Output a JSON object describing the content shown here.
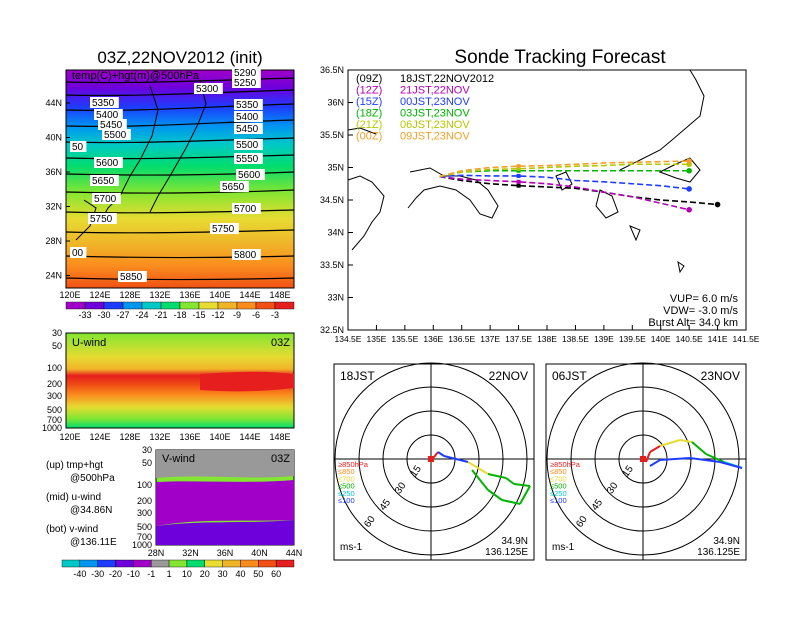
{
  "left": {
    "title": "03Z,22NOV2012  (init)",
    "top_panel": {
      "label": "temp(C)+hgt(m)@500hPa",
      "lat_ticks": [
        "44N",
        "40N",
        "36N",
        "32N",
        "28N",
        "24N"
      ],
      "lon_ticks": [
        "120E",
        "124E",
        "128E",
        "132E",
        "136E",
        "140E",
        "144E",
        "148E"
      ],
      "contour_labels": [
        "5300",
        "5290",
        "5250",
        "5350",
        "5350",
        "5400",
        "5400",
        "5450",
        "5450",
        "5500",
        "5500",
        "5550",
        "5600",
        "5600",
        "5650",
        "5650",
        "5700",
        "5700",
        "5750",
        "5750",
        "5800",
        "5850",
        "50",
        "00"
      ],
      "colorbar_ticks": [
        "-33",
        "-30",
        "-27",
        "-24",
        "-21",
        "-18",
        "-15",
        "-12",
        "-9",
        "-6",
        "-3"
      ],
      "colorbar_colors": [
        "#a000c8",
        "#6e00dc",
        "#1e3cff",
        "#0096f0",
        "#00c8c8",
        "#00dc6e",
        "#82e632",
        "#e6dc32",
        "#f0b428",
        "#fa8c1e",
        "#f05014",
        "#e61e1e"
      ]
    },
    "mid_panel": {
      "label": "U-wind",
      "time": "03Z",
      "p_ticks": [
        "30",
        "50",
        "100",
        "200",
        "300",
        "500",
        "700",
        "1000"
      ],
      "lon_ticks": [
        "120E",
        "124E",
        "128E",
        "132E",
        "136E",
        "140E",
        "144E",
        "148E"
      ]
    },
    "bot_panel": {
      "label": "V-wind",
      "time": "03Z",
      "p_ticks": [
        "30",
        "50",
        "100",
        "200",
        "300",
        "500",
        "700",
        "1000"
      ],
      "lat_ticks": [
        "28N",
        "32N",
        "36N",
        "40N",
        "44N"
      ]
    },
    "legend_text": {
      "up1": "(up)  tmp+hgt",
      "up2": "@500hPa",
      "mid1": "(mid)  u-wind",
      "mid2": "@34.86N",
      "bot1": "(bot)  v-wind",
      "bot2": "@136.11E"
    },
    "wind_colorbar_ticks": [
      "-40",
      "-30",
      "-20",
      "-10",
      "-1",
      "1",
      "10",
      "20",
      "30",
      "40",
      "50",
      "60"
    ],
    "wind_colorbar_colors": [
      "#00c8c8",
      "#0096f0",
      "#1e3cff",
      "#6e00dc",
      "#a000c8",
      "#999999",
      "#82e632",
      "#00dc6e",
      "#e6dc32",
      "#f0b428",
      "#fa8c1e",
      "#f05014",
      "#e61e1e"
    ]
  },
  "right": {
    "title": "Sonde Tracking Forecast",
    "lat_ticks": [
      "36.5N",
      "36N",
      "35.5N",
      "35N",
      "34.5N",
      "34N",
      "33.5N",
      "33N",
      "32.5N"
    ],
    "lon_ticks": [
      "134.5E",
      "135E",
      "135.5E",
      "136E",
      "136.5E",
      "137E",
      "137.5E",
      "138E",
      "138.5E",
      "139E",
      "139.5E",
      "140E",
      "140.5E",
      "141E",
      "141.5E"
    ],
    "legend": [
      {
        "run": "(09Z)",
        "time": "18JST,22NOV2012",
        "color": "#000000"
      },
      {
        "run": "(12Z)",
        "time": "21JST,22NOV",
        "color": "#b400b4"
      },
      {
        "run": "(15Z)",
        "time": "00JST,23NOV",
        "color": "#1e3cff"
      },
      {
        "run": "(18Z)",
        "time": "03JST,23NOV",
        "color": "#00b400"
      },
      {
        "run": "(21Z)",
        "time": "06JST,23NOV",
        "color": "#b4c800"
      },
      {
        "run": "(00Z)",
        "time": "09JST,23NOV",
        "color": "#f0a028"
      }
    ],
    "params": {
      "vup": "VUP=  6.0  m/s",
      "vdw": "VDW=  -3.0  m/s",
      "burst": "Burst Alt=  34.0  km"
    }
  },
  "chart_data": {
    "type": "line",
    "title": "Sonde Tracking Forecast",
    "xlabel": "",
    "ylabel": "",
    "xlim": [
      134.5,
      141.5
    ],
    "ylim": [
      32.5,
      36.5
    ],
    "launch": [
      136.11,
      34.86
    ],
    "series": [
      {
        "name": "(09Z) 18JST,22NOV2012",
        "x": [
          136.11,
          136.5,
          137.0,
          137.5,
          138.0,
          138.5,
          139.0,
          139.5,
          140.0,
          140.5,
          141.0
        ],
        "y": [
          34.86,
          34.8,
          34.75,
          34.72,
          34.7,
          34.68,
          34.62,
          34.55,
          34.5,
          34.47,
          34.43
        ]
      },
      {
        "name": "(12Z) 21JST,22NOV",
        "x": [
          136.11,
          136.5,
          137.0,
          137.5,
          138.0,
          138.5,
          139.0,
          139.5,
          140.0,
          140.5
        ],
        "y": [
          34.86,
          34.82,
          34.8,
          34.78,
          34.75,
          34.7,
          34.62,
          34.55,
          34.45,
          34.35
        ]
      },
      {
        "name": "(15Z) 00JST,23NOV",
        "x": [
          136.11,
          136.5,
          137.0,
          137.5,
          138.0,
          138.5,
          139.0,
          139.5,
          140.0,
          140.5
        ],
        "y": [
          34.86,
          34.88,
          34.87,
          34.87,
          34.85,
          34.8,
          34.78,
          34.75,
          34.72,
          34.67
        ]
      },
      {
        "name": "(18Z) 03JST,23NOV",
        "x": [
          136.11,
          136.5,
          137.0,
          137.5,
          138.0,
          138.5,
          139.0,
          139.5,
          140.0,
          140.5
        ],
        "y": [
          34.86,
          34.93,
          34.95,
          34.95,
          34.95,
          34.95,
          34.95,
          34.95,
          34.95,
          34.95
        ]
      },
      {
        "name": "(21Z) 06JST,23NOV",
        "x": [
          136.11,
          136.5,
          137.0,
          137.5,
          138.0,
          138.5,
          139.0,
          139.5,
          140.0,
          140.5
        ],
        "y": [
          34.86,
          34.93,
          34.97,
          34.98,
          35.0,
          35.02,
          35.03,
          35.05,
          35.05,
          35.05
        ]
      },
      {
        "name": "(00Z) 09JST,23NOV",
        "x": [
          136.11,
          136.5,
          137.0,
          137.5,
          138.0,
          138.5,
          139.0,
          139.5,
          140.0,
          140.5
        ],
        "y": [
          34.86,
          34.95,
          35.0,
          35.02,
          35.03,
          35.05,
          35.07,
          35.08,
          35.09,
          35.1
        ]
      }
    ],
    "hodographs": [
      {
        "time": "18JST",
        "date": "22NOV",
        "loc_lat": "34.9N",
        "loc_lon": "136.125E",
        "unit": "ms-1",
        "ring_labels": [
          "15",
          "30",
          "45",
          "60"
        ],
        "pressure_labels": [
          "≥850hPa",
          "≤850",
          "≤700",
          "≤500",
          "≤250",
          "≤100"
        ]
      },
      {
        "time": "06JST",
        "date": "23NOV",
        "loc_lat": "34.9N",
        "loc_lon": "136.125E",
        "unit": "ms-1",
        "ring_labels": [
          "15",
          "30",
          "45",
          "60"
        ],
        "pressure_labels": [
          "≥850hPa",
          "≤850",
          "≤700",
          "≤500",
          "≤250",
          "≤100"
        ]
      }
    ]
  }
}
